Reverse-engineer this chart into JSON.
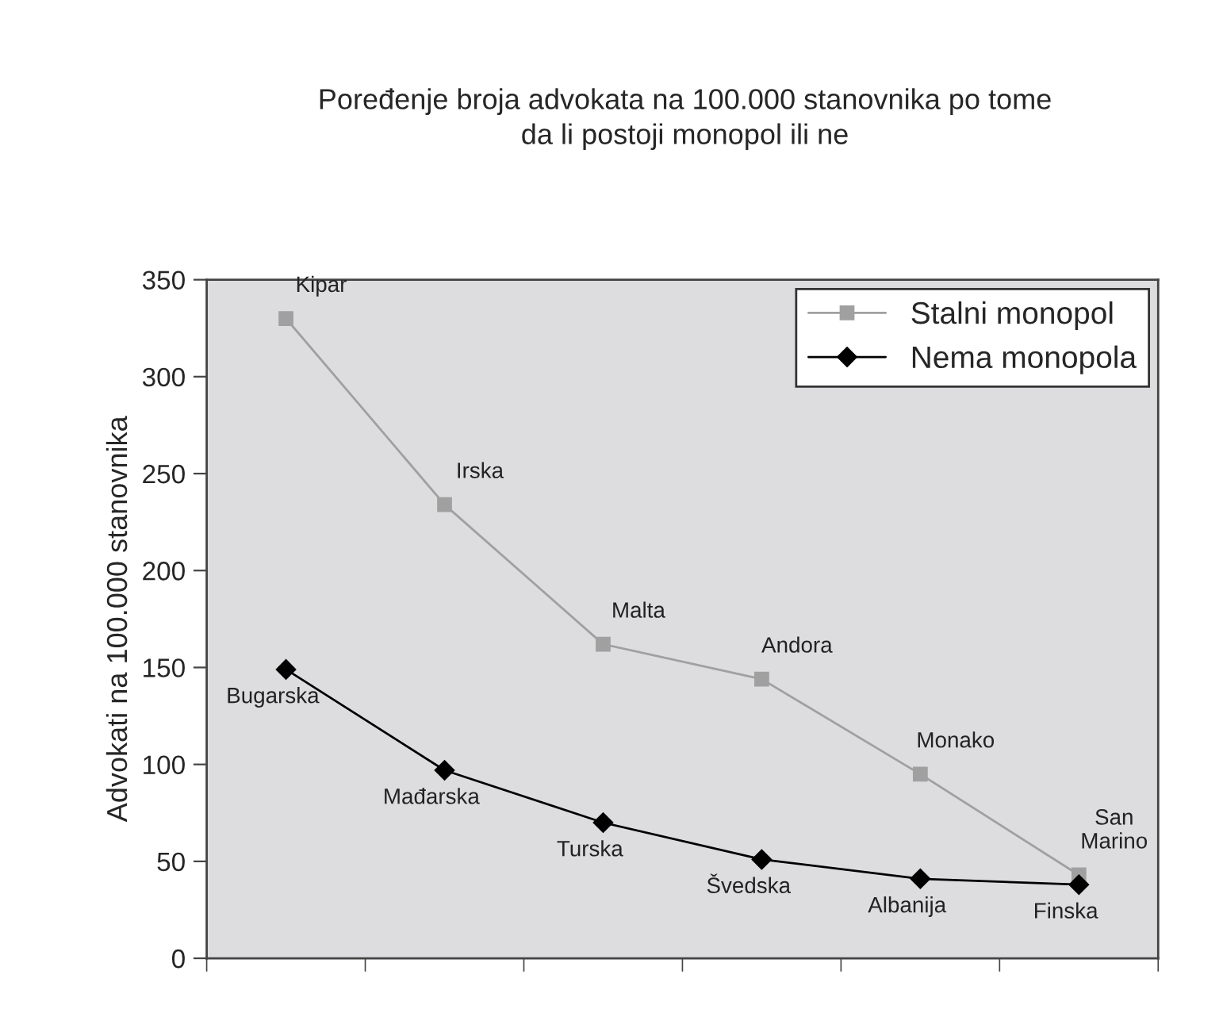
{
  "chart_data": {
    "type": "line",
    "title": "Poređenje broja advokata na 100.000 stanovnika po tome\nda li postoji monopol ili ne",
    "ylabel": "Advokati na 100.000 stanovnika",
    "categories": [
      null,
      null,
      null,
      null,
      null,
      null
    ],
    "ylim": [
      0,
      350
    ],
    "yticks": [
      0,
      50,
      100,
      150,
      200,
      250,
      300,
      350
    ],
    "series": [
      {
        "name": "Stalni monopol",
        "color": "#a0a0a0",
        "marker": "square",
        "values": [
          330,
          234,
          162,
          144,
          95,
          43
        ],
        "value_labels": [
          "Kipar",
          "Irska",
          "Malta",
          "Andora",
          "Monako",
          "San\nMarino"
        ]
      },
      {
        "name": "Nema monopola",
        "color": "#000000",
        "marker": "diamond",
        "values": [
          149,
          97,
          70,
          51,
          41,
          38
        ],
        "value_labels": [
          "Bugarska",
          "Mađarska",
          "Turska",
          "Švedska",
          "Albanija",
          "Finska"
        ]
      }
    ],
    "legend": "top right",
    "line_style": "solid"
  }
}
